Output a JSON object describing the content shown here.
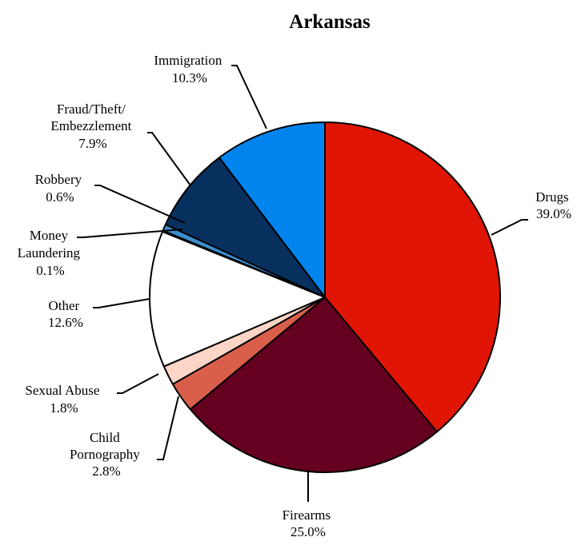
{
  "chart_data": {
    "type": "pie",
    "title": "Arkansas",
    "series": [
      {
        "name": "Drugs",
        "value": 39.0,
        "label": "39.0%",
        "color": "#e01505"
      },
      {
        "name": "Firearms",
        "value": 25.0,
        "label": "25.0%",
        "color": "#650020"
      },
      {
        "name": "Child Pornography",
        "value": 2.8,
        "label": "2.8%",
        "color": "#d95f4b"
      },
      {
        "name": "Sexual Abuse",
        "value": 1.8,
        "label": "1.8%",
        "color": "#fcd5c6"
      },
      {
        "name": "Other",
        "value": 12.6,
        "label": "12.6%",
        "color": "#ffffff"
      },
      {
        "name": "Money Laundering",
        "value": 0.1,
        "label": "0.1%",
        "color": "#08306b"
      },
      {
        "name": "Robbery",
        "value": 0.6,
        "label": "0.6%",
        "color": "#3b8fd0"
      },
      {
        "name": "Fraud/Theft/Embezzlement",
        "value": 7.9,
        "label": "7.9%",
        "color": "#08305e"
      },
      {
        "name": "Immigration",
        "value": 10.3,
        "label": "10.3%",
        "color": "#0284ee"
      }
    ],
    "labels": {
      "drugs": {
        "lines": [
          "Drugs"
        ],
        "pct": "39.0%"
      },
      "firearms": {
        "lines": [
          "Firearms"
        ],
        "pct": "25.0%"
      },
      "child_pornography": {
        "lines": [
          "Child",
          "Pornography"
        ],
        "pct": "2.8%"
      },
      "sexual_abuse": {
        "lines": [
          "Sexual Abuse"
        ],
        "pct": "1.8%"
      },
      "other": {
        "lines": [
          "Other"
        ],
        "pct": "12.6%"
      },
      "money_laundering": {
        "lines": [
          "Money",
          "Laundering"
        ],
        "pct": "0.1%"
      },
      "robbery": {
        "lines": [
          "Robbery"
        ],
        "pct": "0.6%"
      },
      "fraud": {
        "lines": [
          "Fraud/Theft/",
          "Embezzlement"
        ],
        "pct": "7.9%"
      },
      "immigration": {
        "lines": [
          "Immigration"
        ],
        "pct": "10.3%"
      }
    }
  }
}
